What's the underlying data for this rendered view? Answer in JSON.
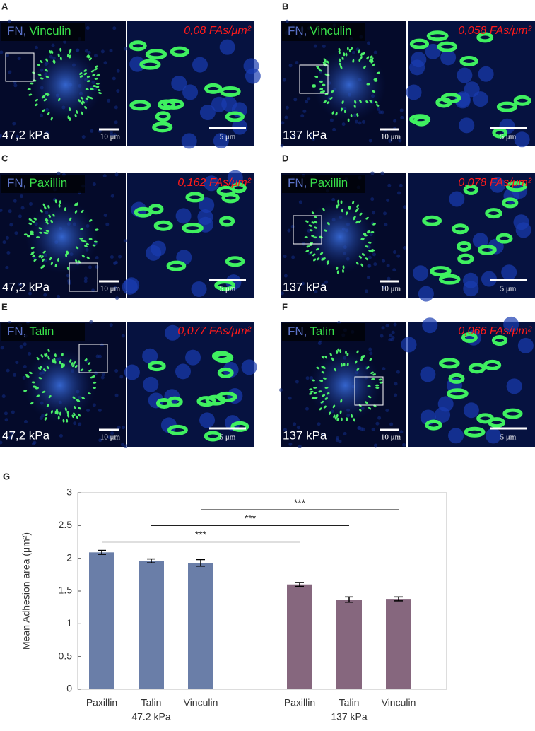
{
  "panels": [
    {
      "letter": "A",
      "fn": "FN,",
      "stain": "Vinculin",
      "density": "0,08 FAs/μm²",
      "stiffness": "47,2 kPa",
      "scale_left": "10 μm",
      "scale_right": "5 μm"
    },
    {
      "letter": "B",
      "fn": "FN,",
      "stain": "Vinculin",
      "density": "0,058 FAs/μm²",
      "stiffness": "137 kPa",
      "scale_left": "10 μm",
      "scale_right": "5 μm"
    },
    {
      "letter": "C",
      "fn": "FN,",
      "stain": "Paxillin",
      "density": "0,162 FAs/μm²",
      "stiffness": "47,2 kPa",
      "scale_left": "10 μm",
      "scale_right": "5 μm"
    },
    {
      "letter": "D",
      "fn": "FN,",
      "stain": "Paxillin",
      "density": "0,078 FAs/μm²",
      "stiffness": "137 kPa",
      "scale_left": "10 μm",
      "scale_right": "5 μm"
    },
    {
      "letter": "E",
      "fn": "FN,",
      "stain": "Talin",
      "density": "0,077 FAs/μm²",
      "stiffness": "47,2 kPa",
      "scale_left": "10 μm",
      "scale_right": "5 μm"
    },
    {
      "letter": "F",
      "fn": "FN,",
      "stain": "Talin",
      "density": "0,066 FAs/μm²",
      "stiffness": "137 kPa",
      "scale_left": "10 μm",
      "scale_right": "5 μm"
    }
  ],
  "chart_data": {
    "type": "bar",
    "letter": "G",
    "ylabel": "Mean Adhesion area (μm²)",
    "ylim": [
      0,
      3
    ],
    "yticks": [
      0,
      0.5,
      1,
      1.5,
      2,
      2.5,
      3
    ],
    "groups": [
      {
        "label": "47.2 kPa",
        "color": "#6a7ea8",
        "categories": [
          "Paxillin",
          "Talin",
          "Vinculin"
        ],
        "values": [
          2.09,
          1.96,
          1.93
        ],
        "errors": [
          0.03,
          0.03,
          0.05
        ]
      },
      {
        "label": "137 kPa",
        "color": "#86677e",
        "categories": [
          "Paxillin",
          "Talin",
          "Vinculin"
        ],
        "values": [
          1.6,
          1.37,
          1.38
        ],
        "errors": [
          0.03,
          0.04,
          0.03
        ]
      }
    ],
    "significance": [
      {
        "from": 0,
        "to": 0,
        "y": 2.25,
        "label": "***"
      },
      {
        "from": 1,
        "to": 1,
        "y": 2.5,
        "label": "***"
      },
      {
        "from": 2,
        "to": 2,
        "y": 2.74,
        "label": "***"
      }
    ]
  }
}
